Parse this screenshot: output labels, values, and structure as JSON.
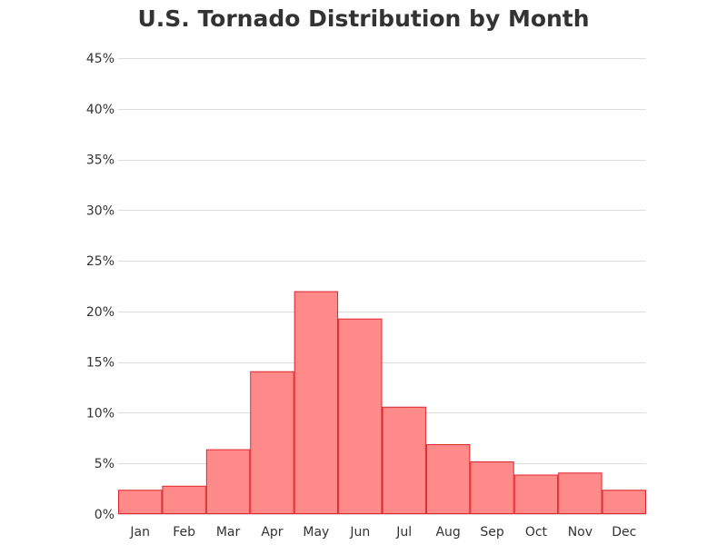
{
  "title": "U.S. Tornado Distribution by Month",
  "chart_data": {
    "type": "bar",
    "title": "U.S. Tornado Distribution by Month",
    "xlabel": "",
    "ylabel": "",
    "categories": [
      "Jan",
      "Feb",
      "Mar",
      "Apr",
      "May",
      "Jun",
      "Jul",
      "Aug",
      "Sep",
      "Oct",
      "Nov",
      "Dec"
    ],
    "values": [
      2.4,
      2.8,
      6.4,
      14.1,
      22.0,
      19.3,
      10.6,
      6.9,
      5.2,
      3.9,
      4.1,
      2.4
    ],
    "ylim": [
      0,
      45
    ],
    "yticks": [
      0,
      5,
      10,
      15,
      20,
      25,
      30,
      35,
      40,
      45
    ],
    "ytick_labels": [
      "0%",
      "5%",
      "10%",
      "15%",
      "20%",
      "25%",
      "30%",
      "35%",
      "40%",
      "45%"
    ],
    "grid": true,
    "legend": "none",
    "bar_fill": "#ff8a8a",
    "bar_stroke": "#e0242b",
    "grid_color": "#dcdcdc",
    "text_color": "#333333"
  }
}
